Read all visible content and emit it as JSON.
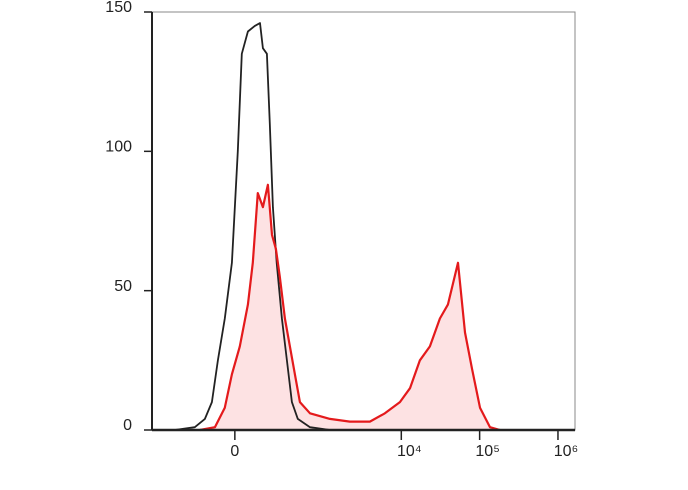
{
  "chart_data": {
    "type": "histogram-line",
    "xscale": "biexponential",
    "xlim": [
      -850,
      1650000
    ],
    "ylim": [
      0,
      150
    ],
    "xticks": [
      0,
      {
        "value": 10000,
        "label": "10⁴"
      },
      {
        "value": 100000,
        "label": "10⁵"
      },
      {
        "value": 1000000,
        "label": "10⁶"
      }
    ],
    "yticks": [
      0,
      50,
      100,
      150
    ],
    "series": [
      {
        "color": "#222222",
        "fill": null,
        "x": [
          -425,
          -220,
          -150,
          -109,
          -78,
          -45,
          -13,
          13,
          31,
          59,
          93,
          121,
          138,
          163,
          183,
          205,
          235,
          280,
          330,
          387,
          466,
          675,
          1220,
          2200
        ],
        "values": [
          0,
          1,
          4,
          10,
          25,
          40,
          60,
          100,
          135,
          143,
          145,
          146,
          137,
          135,
          110,
          80,
          60,
          40,
          25,
          10,
          4,
          1,
          0,
          0
        ]
      },
      {
        "color": "#e41a1c",
        "fill": "#fde2e3",
        "x": [
          -183,
          -93,
          -45,
          -13,
          22,
          59,
          83,
          109,
          138,
          170,
          198,
          228,
          261,
          309,
          363,
          425,
          497,
          675,
          1220,
          2200,
          3975,
          6180,
          9600,
          12900,
          17300,
          23200,
          31100,
          39400,
          52900,
          65000,
          79800,
          101000,
          135600,
          182000
        ],
        "values": [
          0,
          1,
          8,
          20,
          30,
          45,
          60,
          85,
          80,
          88,
          70,
          65,
          55,
          40,
          30,
          20,
          10,
          6,
          4,
          3,
          3,
          6,
          10,
          15,
          25,
          30,
          40,
          45,
          60,
          35,
          22,
          8,
          1,
          0
        ]
      }
    ]
  }
}
